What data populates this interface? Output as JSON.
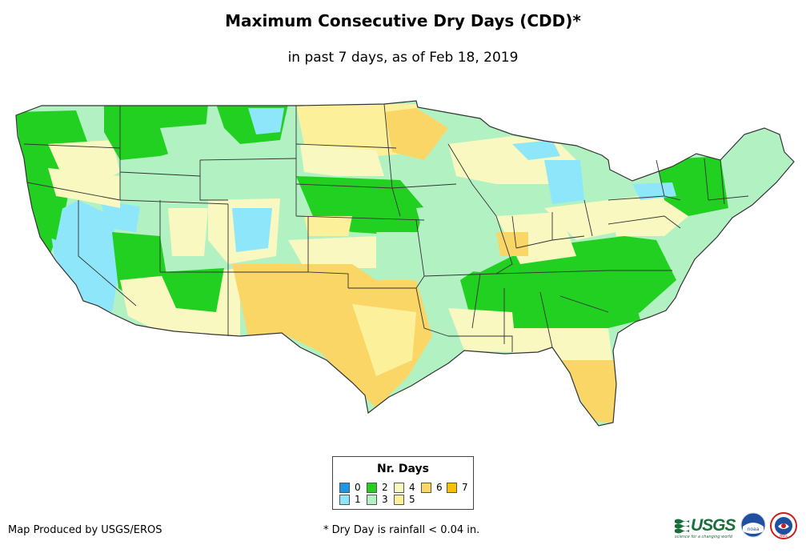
{
  "title": "Maximum Consecutive Dry Days (CDD)*",
  "subtitle": "in past 7 days, as of Feb 18, 2019",
  "legend": {
    "title": "Nr. Days",
    "items": [
      {
        "label": "0",
        "color": "#1e96e6"
      },
      {
        "label": "1",
        "color": "#8ee6fa"
      },
      {
        "label": "2",
        "color": "#22d022"
      },
      {
        "label": "3",
        "color": "#b2f2c2"
      },
      {
        "label": "4",
        "color": "#f8f8c0"
      },
      {
        "label": "5",
        "color": "#fcf09a"
      },
      {
        "label": "6",
        "color": "#fad666"
      },
      {
        "label": "7",
        "color": "#fac000"
      }
    ]
  },
  "credit": "Map Produced by USGS/EROS",
  "footnote": "* Dry Day is rainfall < 0.04 in.",
  "logos": {
    "usgs_text": "USGS",
    "usgs_tagline": "science for a changing world",
    "noaa_text": "noaa",
    "nws_text": "NWS"
  },
  "colors": {
    "ocean": "#ffffff",
    "state_border": "#333333"
  }
}
